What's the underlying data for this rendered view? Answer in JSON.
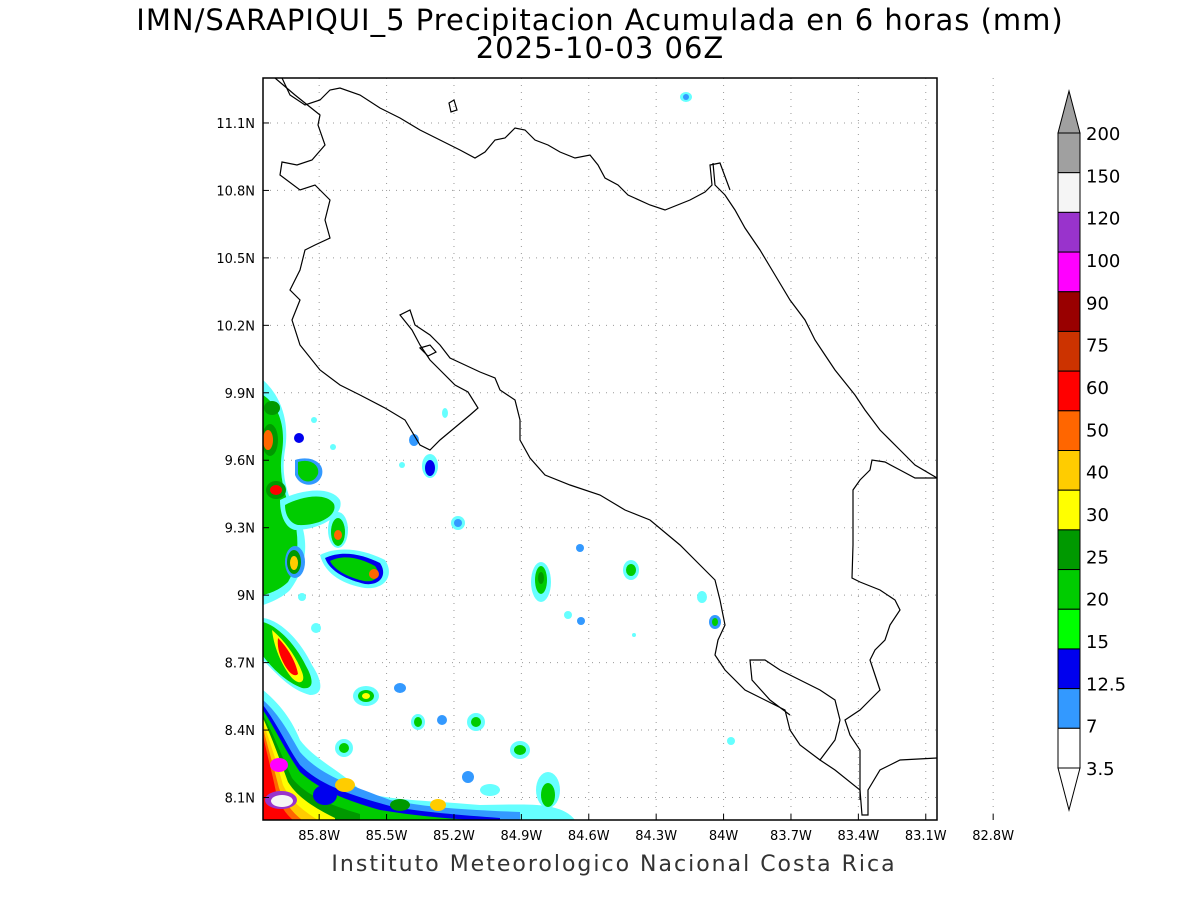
{
  "title_line1": "IMN/SARAPIQUI_5 Precipitacion Acumulada en 6 horas (mm)",
  "title_line2": "2025-10-03 06Z",
  "footer": "Instituto Meteorologico Nacional Costa Rica",
  "axes": {
    "lon_ticks": [
      "85.8W",
      "85.5W",
      "85.2W",
      "84.9W",
      "84.6W",
      "84.3W",
      "84W",
      "83.7W",
      "83.4W",
      "83.1W",
      "82.8W"
    ],
    "lat_ticks": [
      "11.1N",
      "10.8N",
      "10.5N",
      "10.2N",
      "9.9N",
      "9.6N",
      "9.3N",
      "9N",
      "8.7N",
      "8.4N",
      "8.1N"
    ],
    "lon_range": [
      -86.05,
      -83.05
    ],
    "lat_range": [
      8.0,
      11.3
    ],
    "grid": "dotted"
  },
  "colorbar": {
    "labels": [
      "3.5",
      "7",
      "12.5",
      "15",
      "20",
      "25",
      "30",
      "40",
      "50",
      "60",
      "75",
      "90",
      "100",
      "120",
      "150",
      "200"
    ],
    "colors": [
      "#66ffff",
      "#3399ff",
      "#0000ee",
      "#00ff00",
      "#00cc00",
      "#009900",
      "#ffff00",
      "#ffcc00",
      "#ff6600",
      "#ff0000",
      "#cc3300",
      "#990000",
      "#ff00ff",
      "#9933cc",
      "#f5f5f5",
      "#a0a0a0"
    ],
    "under_color": "#ffffff"
  }
}
